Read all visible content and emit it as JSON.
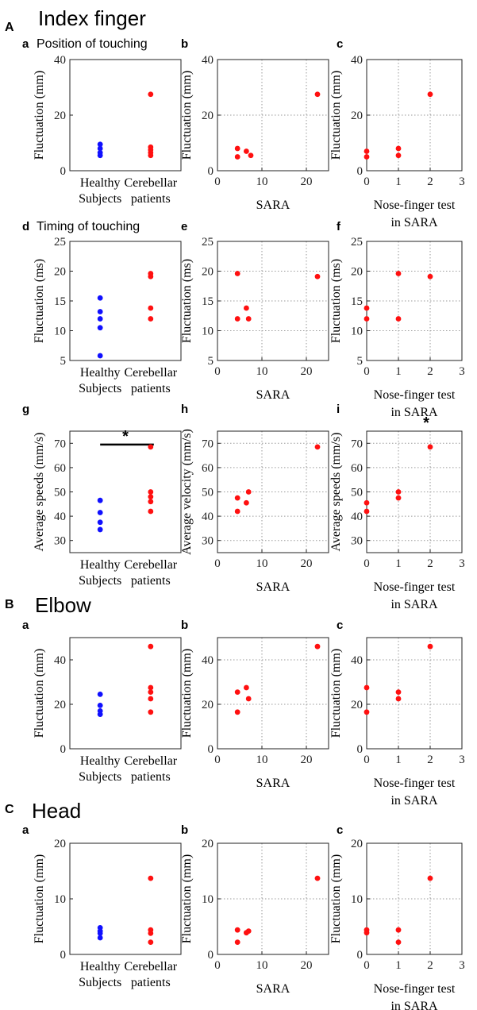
{
  "colors": {
    "healthy": "#1010ff",
    "patient": "#ff1010"
  },
  "sections": [
    {
      "letter": "A",
      "title": "Index finger"
    },
    {
      "letter": "B",
      "title": "Elbow"
    },
    {
      "letter": "C",
      "title": "Head"
    }
  ],
  "chart_data": [
    {
      "id": "A-a",
      "type": "scatter",
      "panel_letter": "a",
      "subtitle": "Position of touching",
      "ylabel": "Fluctuation (mm)",
      "xlabel_lines": [],
      "categories": [
        "Healthy Subjects",
        "Cerebellar patients"
      ],
      "category_label_lines": [
        [
          "Healthy",
          "Subjects"
        ],
        [
          "Cerebellar",
          "patients"
        ]
      ],
      "ylim": [
        0,
        40
      ],
      "yticks": [
        0,
        20,
        40
      ],
      "grid": false,
      "series": [
        {
          "name": "Healthy Subjects",
          "color": "healthy",
          "x": [
            1,
            1,
            1,
            1
          ],
          "y": [
            5.5,
            6.5,
            8,
            9.5
          ]
        },
        {
          "name": "Cerebellar patients",
          "color": "patient",
          "x": [
            2,
            2,
            2,
            2,
            2
          ],
          "y": [
            5.5,
            6.5,
            7.5,
            8.5,
            27.5
          ]
        }
      ]
    },
    {
      "id": "A-b",
      "type": "scatter",
      "panel_letter": "b",
      "subtitle": "",
      "ylabel": "Fluctuation (mm)",
      "xlabel_lines": [
        "SARA"
      ],
      "xlim": [
        0,
        25
      ],
      "xticks": [
        0,
        10,
        20
      ],
      "ylim": [
        0,
        40
      ],
      "yticks": [
        0,
        20,
        40
      ],
      "grid": true,
      "series": [
        {
          "name": "Cerebellar patients",
          "color": "patient",
          "x": [
            4.5,
            4.5,
            6.5,
            7.5,
            22.5
          ],
          "y": [
            5,
            8,
            7,
            5.5,
            27.5
          ]
        }
      ]
    },
    {
      "id": "A-c",
      "type": "scatter",
      "panel_letter": "c",
      "subtitle": "",
      "ylabel": "Fluctuation (mm)",
      "xlabel_lines": [
        "Nose-finger test",
        "in SARA"
      ],
      "xlim": [
        0,
        3
      ],
      "xticks": [
        0,
        1,
        2,
        3
      ],
      "ylim": [
        0,
        40
      ],
      "yticks": [
        0,
        20,
        40
      ],
      "grid": true,
      "series": [
        {
          "name": "Cerebellar patients",
          "color": "patient",
          "x": [
            0,
            0,
            1,
            1,
            2
          ],
          "y": [
            5,
            7,
            5.5,
            8,
            27.5
          ]
        }
      ]
    },
    {
      "id": "A-d",
      "type": "scatter",
      "panel_letter": "d",
      "subtitle": "Timing of touching",
      "ylabel": "Fluctuation (ms)",
      "xlabel_lines": [],
      "categories": [
        "Healthy Subjects",
        "Cerebellar patients"
      ],
      "category_label_lines": [
        [
          "Healthy",
          "Subjects"
        ],
        [
          "Cerebellar",
          "patients"
        ]
      ],
      "ylim": [
        5,
        25
      ],
      "yticks": [
        5,
        10,
        15,
        20,
        25
      ],
      "grid": false,
      "series": [
        {
          "name": "Healthy Subjects",
          "color": "healthy",
          "x": [
            1,
            1,
            1,
            1,
            1
          ],
          "y": [
            5.8,
            10.5,
            12,
            13.2,
            15.5
          ]
        },
        {
          "name": "Cerebellar patients",
          "color": "patient",
          "x": [
            2,
            2,
            2,
            2
          ],
          "y": [
            12,
            13.8,
            19.1,
            19.6
          ]
        }
      ]
    },
    {
      "id": "A-e",
      "type": "scatter",
      "panel_letter": "e",
      "subtitle": "",
      "ylabel": "Fluctuation (ms)",
      "xlabel_lines": [
        "SARA"
      ],
      "xlim": [
        0,
        25
      ],
      "xticks": [
        0,
        10,
        20
      ],
      "ylim": [
        5,
        25
      ],
      "yticks": [
        5,
        10,
        15,
        20,
        25
      ],
      "grid": true,
      "series": [
        {
          "name": "Cerebellar patients",
          "color": "patient",
          "x": [
            4.5,
            4.5,
            6.5,
            7,
            22.5
          ],
          "y": [
            19.6,
            12,
            13.8,
            12,
            19.1
          ]
        }
      ]
    },
    {
      "id": "A-f",
      "type": "scatter",
      "panel_letter": "f",
      "subtitle": "",
      "ylabel": "Fluctuation (ms)",
      "xlabel_lines": [
        "Nose-finger test",
        "in SARA"
      ],
      "xlim": [
        0,
        3
      ],
      "xticks": [
        0,
        1,
        2,
        3
      ],
      "ylim": [
        5,
        25
      ],
      "yticks": [
        5,
        10,
        15,
        20,
        25
      ],
      "grid": true,
      "series": [
        {
          "name": "Cerebellar patients",
          "color": "patient",
          "x": [
            0,
            0,
            1,
            1,
            2
          ],
          "y": [
            12,
            13.8,
            12,
            19.6,
            19.1
          ]
        }
      ]
    },
    {
      "id": "A-g",
      "type": "scatter",
      "panel_letter": "g",
      "subtitle": "",
      "ylabel": "Average speeds (mm/s)",
      "xlabel_lines": [],
      "categories": [
        "Healthy Subjects",
        "Cerebellar patients"
      ],
      "category_label_lines": [
        [
          "Healthy",
          "Subjects"
        ],
        [
          "Cerebellar",
          "patients"
        ]
      ],
      "ylim": [
        25,
        75
      ],
      "yticks": [
        30,
        40,
        50,
        60,
        70
      ],
      "grid": false,
      "significance": {
        "from": 1,
        "to": 2,
        "y": 69.5,
        "label": "*"
      },
      "series": [
        {
          "name": "Healthy Subjects",
          "color": "healthy",
          "x": [
            1,
            1,
            1,
            1
          ],
          "y": [
            34.5,
            37.5,
            41.5,
            46.5
          ]
        },
        {
          "name": "Cerebellar patients",
          "color": "patient",
          "x": [
            2,
            2,
            2,
            2,
            2
          ],
          "y": [
            42,
            46,
            48,
            50,
            68.5
          ]
        }
      ]
    },
    {
      "id": "A-h",
      "type": "scatter",
      "panel_letter": "h",
      "subtitle": "",
      "ylabel": "Average velocity (mm/s)",
      "xlabel_lines": [
        "SARA"
      ],
      "xlim": [
        0,
        25
      ],
      "xticks": [
        0,
        10,
        20
      ],
      "ylim": [
        25,
        75
      ],
      "yticks": [
        30,
        40,
        50,
        60,
        70
      ],
      "grid": true,
      "series": [
        {
          "name": "Cerebellar patients",
          "color": "patient",
          "x": [
            4.5,
            4.5,
            6.5,
            7,
            22.5
          ],
          "y": [
            42,
            47.5,
            45.5,
            50,
            68.5
          ]
        }
      ]
    },
    {
      "id": "A-i",
      "type": "scatter",
      "panel_letter": "i",
      "subtitle": "",
      "ylabel": "Average speeds (mm/s)",
      "xlabel_lines": [
        "Nose-finger test",
        "in SARA"
      ],
      "xlim": [
        0,
        3
      ],
      "xticks": [
        0,
        1,
        2,
        3
      ],
      "ylim": [
        25,
        75
      ],
      "yticks": [
        30,
        40,
        50,
        60,
        70
      ],
      "grid": true,
      "star_annotation": {
        "x": 2,
        "label": "*"
      },
      "series": [
        {
          "name": "Cerebellar patients",
          "color": "patient",
          "x": [
            0,
            0,
            1,
            1,
            2
          ],
          "y": [
            42,
            45.5,
            47.5,
            50,
            68.5
          ]
        }
      ]
    },
    {
      "id": "B-a",
      "type": "scatter",
      "panel_letter": "a",
      "subtitle": "",
      "ylabel": "Fluctuation (mm)",
      "xlabel_lines": [],
      "categories": [
        "Healthy Subjects",
        "Cerebellar patients"
      ],
      "category_label_lines": [
        [
          "Healthy",
          "Subjects"
        ],
        [
          "Cerebellar",
          "patients"
        ]
      ],
      "ylim": [
        0,
        50
      ],
      "yticks": [
        0,
        20,
        40
      ],
      "grid": false,
      "series": [
        {
          "name": "Healthy Subjects",
          "color": "healthy",
          "x": [
            1,
            1,
            1,
            1
          ],
          "y": [
            15.5,
            17,
            19.5,
            24.5
          ]
        },
        {
          "name": "Cerebellar patients",
          "color": "patient",
          "x": [
            2,
            2,
            2,
            2,
            2
          ],
          "y": [
            16.5,
            22.5,
            25.5,
            27.5,
            46
          ]
        }
      ]
    },
    {
      "id": "B-b",
      "type": "scatter",
      "panel_letter": "b",
      "subtitle": "",
      "ylabel": "Fluctuation (mm)",
      "xlabel_lines": [
        "SARA"
      ],
      "xlim": [
        0,
        25
      ],
      "xticks": [
        0,
        10,
        20
      ],
      "ylim": [
        0,
        50
      ],
      "yticks": [
        0,
        20,
        40
      ],
      "grid": true,
      "series": [
        {
          "name": "Cerebellar patients",
          "color": "patient",
          "x": [
            4.5,
            4.5,
            6.5,
            7,
            22.5
          ],
          "y": [
            16.5,
            25.5,
            27.5,
            22.5,
            46
          ]
        }
      ]
    },
    {
      "id": "B-c",
      "type": "scatter",
      "panel_letter": "c",
      "subtitle": "",
      "ylabel": "Fluctuation (mm)",
      "xlabel_lines": [
        "Nose-finger test",
        "in SARA"
      ],
      "xlim": [
        0,
        3
      ],
      "xticks": [
        0,
        1,
        2,
        3
      ],
      "ylim": [
        0,
        50
      ],
      "yticks": [
        0,
        20,
        40
      ],
      "grid": true,
      "series": [
        {
          "name": "Cerebellar patients",
          "color": "patient",
          "x": [
            0,
            0,
            1,
            1,
            2
          ],
          "y": [
            16.5,
            27.5,
            22.5,
            25.5,
            46
          ]
        }
      ]
    },
    {
      "id": "C-a",
      "type": "scatter",
      "panel_letter": "a",
      "subtitle": "",
      "ylabel": "Fluctuation (mm)",
      "xlabel_lines": [],
      "categories": [
        "Healthy Subjects",
        "Cerebellar patients"
      ],
      "category_label_lines": [
        [
          "Healthy",
          "Subjects"
        ],
        [
          "Cerebellar",
          "patients"
        ]
      ],
      "ylim": [
        0,
        20
      ],
      "yticks": [
        0,
        10,
        20
      ],
      "grid": false,
      "series": [
        {
          "name": "Healthy Subjects",
          "color": "healthy",
          "x": [
            1,
            1,
            1,
            1
          ],
          "y": [
            3,
            3.8,
            4.2,
            4.8
          ]
        },
        {
          "name": "Cerebellar patients",
          "color": "patient",
          "x": [
            2,
            2,
            2,
            2
          ],
          "y": [
            2.2,
            3.8,
            4.4,
            13.7
          ]
        }
      ]
    },
    {
      "id": "C-b",
      "type": "scatter",
      "panel_letter": "b",
      "subtitle": "",
      "ylabel": "Fluctuation (mm)",
      "xlabel_lines": [
        "SARA"
      ],
      "xlim": [
        0,
        25
      ],
      "xticks": [
        0,
        10,
        20
      ],
      "ylim": [
        0,
        20
      ],
      "yticks": [
        0,
        10,
        20
      ],
      "grid": true,
      "series": [
        {
          "name": "Cerebellar patients",
          "color": "patient",
          "x": [
            4.5,
            4.5,
            6.5,
            7,
            22.5
          ],
          "y": [
            2.2,
            4.4,
            3.9,
            4.2,
            13.7
          ]
        }
      ]
    },
    {
      "id": "C-c",
      "type": "scatter",
      "panel_letter": "c",
      "subtitle": "",
      "ylabel": "Fluctuation (mm)",
      "xlabel_lines": [
        "Nose-finger test",
        "in SARA"
      ],
      "xlim": [
        0,
        3
      ],
      "xticks": [
        0,
        1,
        2,
        3
      ],
      "ylim": [
        0,
        20
      ],
      "yticks": [
        0,
        10,
        20
      ],
      "grid": true,
      "series": [
        {
          "name": "Cerebellar patients",
          "color": "patient",
          "x": [
            0,
            0,
            1,
            1,
            2
          ],
          "y": [
            3.9,
            4.4,
            2.2,
            4.4,
            13.7
          ]
        }
      ]
    }
  ]
}
